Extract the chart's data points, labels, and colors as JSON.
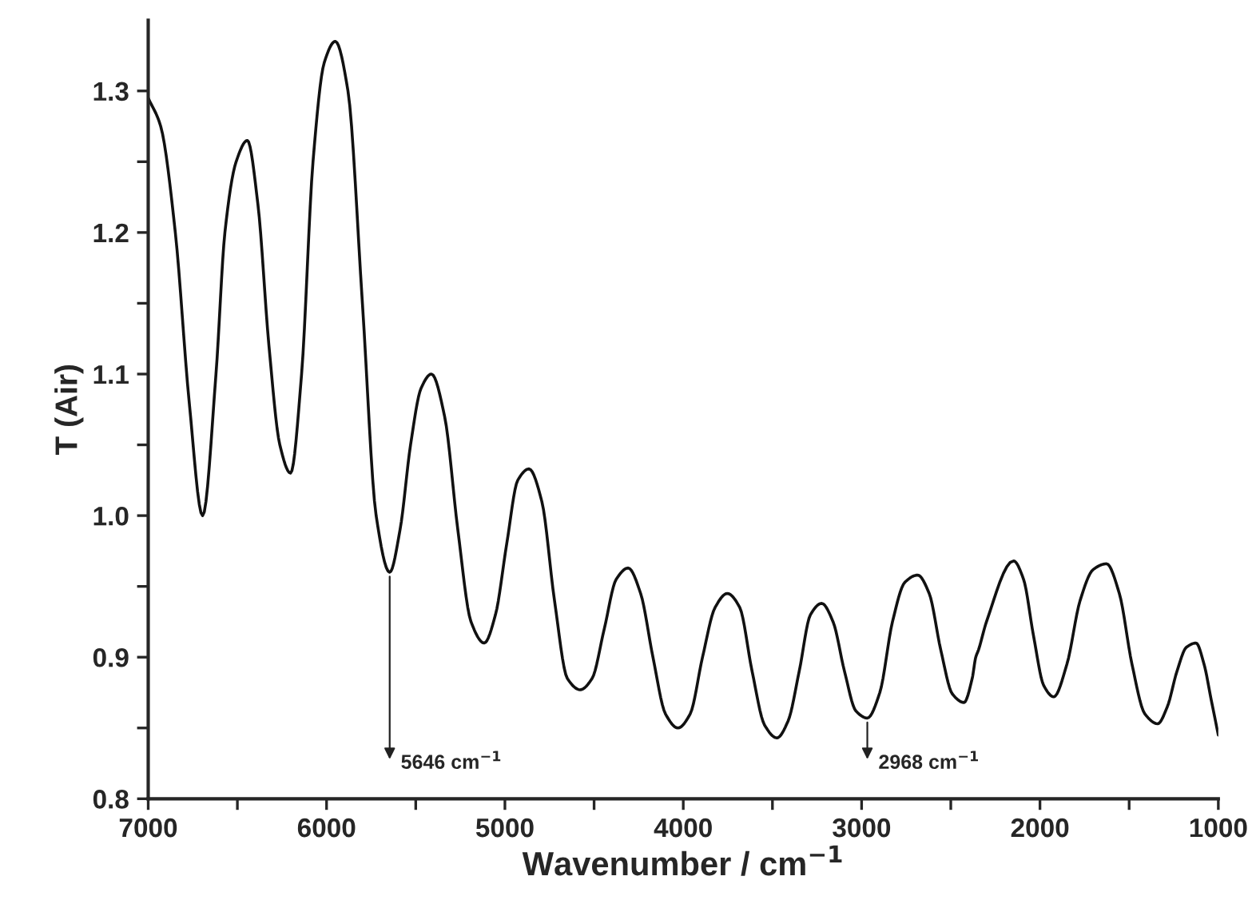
{
  "chart_data": {
    "type": "line",
    "xlabel": "Wavenumber / cm$^{−1}$",
    "ylabel": "T (Air)",
    "x": [
      7000,
      6930,
      6848,
      6770,
      6695,
      6620,
      6570,
      6507,
      6444,
      6385,
      6323,
      6262,
      6202,
      6140,
      6076,
      6013,
      5951,
      5880,
      5799,
      5722,
      5646,
      5588,
      5529,
      5470,
      5412,
      5338,
      5264,
      5190,
      5116,
      5053,
      4990,
      4928,
      4865,
      4793,
      4722,
      4650,
      4578,
      4511,
      4443,
      4376,
      4309,
      4239,
      4170,
      4100,
      4030,
      3961,
      3892,
      3822,
      3753,
      3683,
      3614,
      3544,
      3475,
      3412,
      3350,
      3287,
      3224,
      3160,
      3096,
      3032,
      2968,
      2898,
      2827,
      2757,
      2686,
      2621,
      2556,
      2491,
      2426,
      2380,
      2360,
      2345,
      2300,
      2148,
      2092,
      2036,
      1979,
      1923,
      1849,
      1775,
      1701,
      1627,
      1555,
      1484,
      1412,
      1340,
      1286,
      1232,
      1179,
      1125,
      1080,
      1040,
      1000
    ],
    "values": [
      1.295,
      1.275,
      1.2,
      1.08,
      1.0,
      1.1,
      1.2,
      1.25,
      1.265,
      1.22,
      1.12,
      1.05,
      1.03,
      1.1,
      1.25,
      1.32,
      1.335,
      1.3,
      1.15,
      1.0,
      0.96,
      0.99,
      1.05,
      1.09,
      1.1,
      1.07,
      0.99,
      0.925,
      0.91,
      0.93,
      0.98,
      1.025,
      1.033,
      1.01,
      0.94,
      0.885,
      0.877,
      0.885,
      0.92,
      0.955,
      0.963,
      0.945,
      0.9,
      0.86,
      0.85,
      0.86,
      0.9,
      0.935,
      0.945,
      0.935,
      0.89,
      0.852,
      0.843,
      0.855,
      0.89,
      0.93,
      0.938,
      0.925,
      0.89,
      0.862,
      0.857,
      0.875,
      0.925,
      0.953,
      0.958,
      0.945,
      0.905,
      0.874,
      0.868,
      0.885,
      0.9,
      0.905,
      0.925,
      0.968,
      0.955,
      0.915,
      0.88,
      0.872,
      0.895,
      0.94,
      0.962,
      0.966,
      0.945,
      0.895,
      0.86,
      0.853,
      0.865,
      0.89,
      0.907,
      0.91,
      0.895,
      0.87,
      0.845
    ],
    "color": "#111111",
    "xlim": [
      7000,
      1000
    ],
    "xticks": [
      7000,
      {
        "value": 6500,
        "label": null
      },
      6000,
      {
        "value": 5500,
        "label": null
      },
      5000,
      {
        "value": 4500,
        "label": null
      },
      4000,
      {
        "value": 3500,
        "label": null
      },
      3000,
      {
        "value": 2500,
        "label": null
      },
      2000,
      {
        "value": 1500,
        "label": null
      },
      1000
    ],
    "ylim": [
      0.8,
      1.35
    ],
    "yticks": [
      "0.8",
      {
        "value": 0.85,
        "label": null
      },
      0.9,
      {
        "value": 0.95,
        "label": null
      },
      "1.0",
      {
        "value": 1.05,
        "label": null
      },
      1.1,
      {
        "value": 1.15,
        "label": null
      },
      1.2,
      {
        "value": 1.25,
        "label": null
      },
      1.3
    ],
    "annotations": [
      {
        "text": "5646 cm$^{−1}$",
        "x": 5646,
        "y": 0.96
      },
      {
        "text": "2968 cm$^{−1}$",
        "x": 2968,
        "y": 0.857
      }
    ],
    "grid": false,
    "legend": false,
    "marker": "none",
    "line_style": "solid"
  }
}
